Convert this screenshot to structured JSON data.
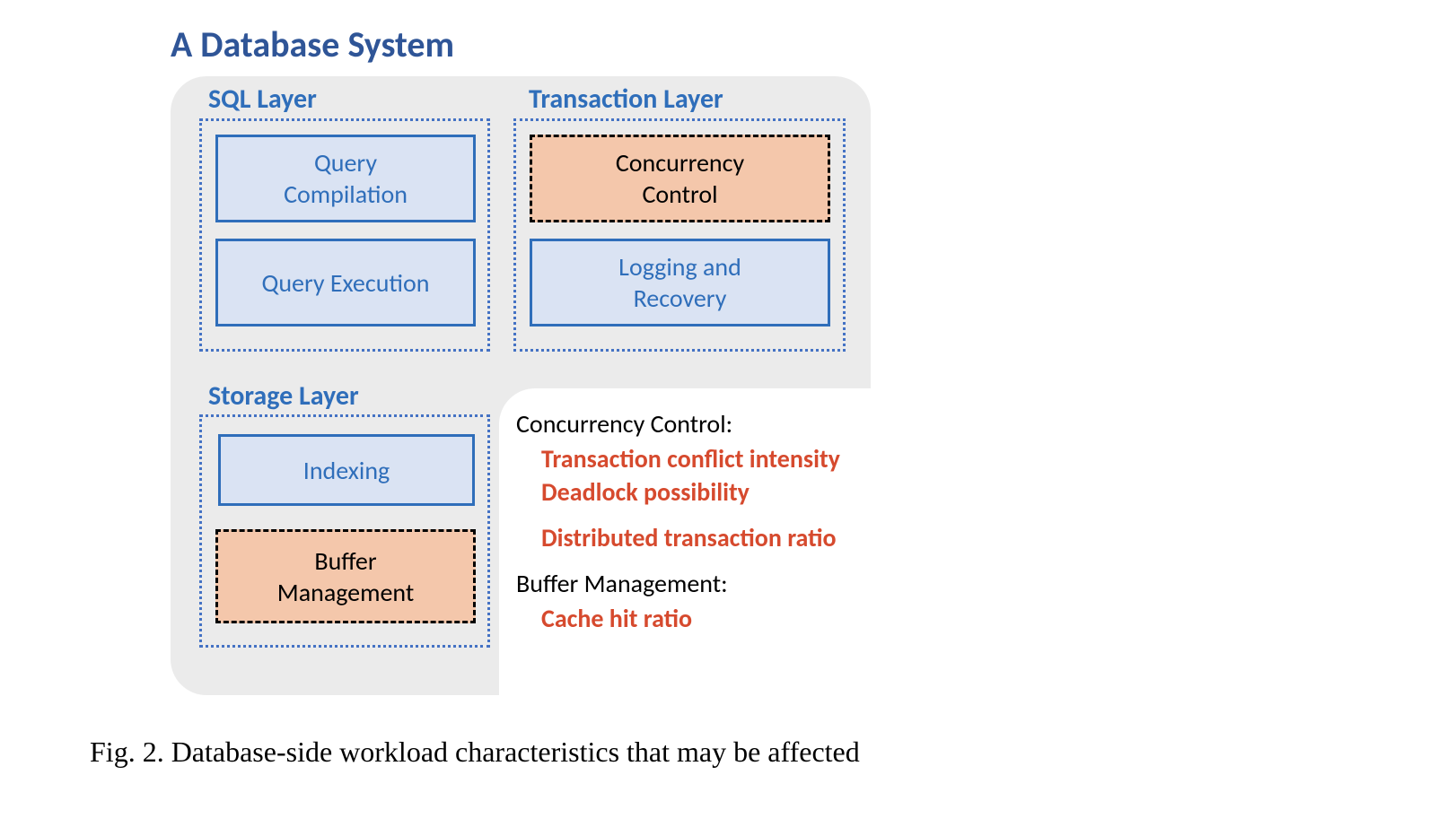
{
  "title": "A Database System",
  "caption": "Fig. 2.  Database-side workload characteristics that may be affected",
  "colors": {
    "title_color": "#2f5597",
    "layer_title_color": "#2f6eba",
    "layer_border_color": "#4472c4",
    "normal_bg": "#dae3f3",
    "normal_border": "#2f6eba",
    "normal_text": "#2f6eba",
    "highlight_bg": "#f4c7ab",
    "highlight_border": "#000000",
    "highlight_text": "#000000",
    "anno_header_color": "#000000",
    "anno_item_color": "#d64a2e",
    "system_bg": "#ebebeb",
    "page_bg": "#ffffff"
  },
  "typography": {
    "title_size": 40,
    "layer_title_size": 30,
    "component_size": 28,
    "annotation_size": 28,
    "caption_size": 32,
    "caption_font": "Times New Roman"
  },
  "layers": {
    "sql": {
      "title": "SQL Layer",
      "components": [
        {
          "id": "query-compilation",
          "label": "Query\nCompilation",
          "highlighted": false
        },
        {
          "id": "query-execution",
          "label": "Query Execution",
          "highlighted": false
        }
      ]
    },
    "transaction": {
      "title": "Transaction Layer",
      "components": [
        {
          "id": "concurrency-control",
          "label": "Concurrency\nControl",
          "highlighted": true
        },
        {
          "id": "logging-recovery",
          "label": "Logging and\nRecovery",
          "highlighted": false
        }
      ]
    },
    "storage": {
      "title": "Storage Layer",
      "components": [
        {
          "id": "indexing",
          "label": "Indexing",
          "highlighted": false
        },
        {
          "id": "buffer-management",
          "label": "Buffer\nManagement",
          "highlighted": true
        }
      ]
    }
  },
  "annotations": [
    {
      "header": "Concurrency Control:",
      "items": [
        "Transaction conflict intensity",
        "Deadlock possibility",
        "Distributed transaction ratio"
      ]
    },
    {
      "header": "Buffer Management:",
      "items": [
        "Cache hit ratio"
      ]
    }
  ]
}
